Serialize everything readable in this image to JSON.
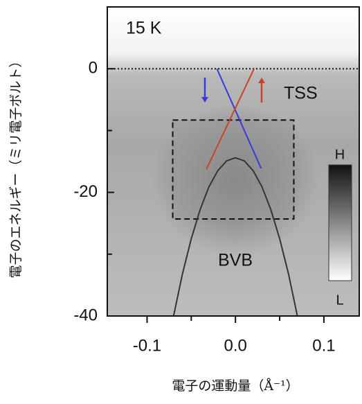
{
  "chart_data": {
    "type": "line",
    "annotations": [
      "15 K",
      "TSS",
      "BVB"
    ],
    "colorbar_labels": [
      "H",
      "L"
    ],
    "xlabel": "電子の運動量（Å⁻¹）",
    "ylabel": "電子のエネルギー（ミリ電子ボルト）",
    "xlim": [
      -0.145,
      0.14
    ],
    "ylim": [
      -40,
      10
    ],
    "xticks": [
      -0.1,
      {
        "value": 0,
        "label": "0.0"
      },
      0.1
    ],
    "yticks": [
      -40,
      -20,
      0
    ],
    "xminor_ticks": [
      -0.05,
      0.05
    ],
    "yminor_ticks": [
      -30,
      -10
    ],
    "reference_line": 0,
    "highlight_box": {
      "x": [
        -0.071,
        0.066
      ],
      "y": [
        -8.3,
        -24.3
      ]
    },
    "series": [
      {
        "color": "#3a3ad6",
        "x": [
          -0.021,
          0.029
        ],
        "values": [
          0,
          -16.1
        ]
      },
      {
        "color": "#c8432a",
        "x": [
          0.021,
          -0.033
        ],
        "values": [
          0,
          -16.3
        ]
      },
      {
        "color": "#333333",
        "x": [
          -0.07,
          -0.06,
          -0.05,
          -0.04,
          -0.03,
          -0.02,
          -0.01,
          0,
          0.01,
          0.02,
          0.03,
          0.04,
          0.05,
          0.06,
          0.07
        ],
        "values": [
          -40.0,
          -33.2,
          -27.5,
          -22.8,
          -19.1,
          -16.5,
          -14.9,
          -14.4,
          -14.9,
          -16.5,
          -19.1,
          -22.8,
          -27.5,
          -33.2,
          -40.0
        ]
      }
    ]
  }
}
